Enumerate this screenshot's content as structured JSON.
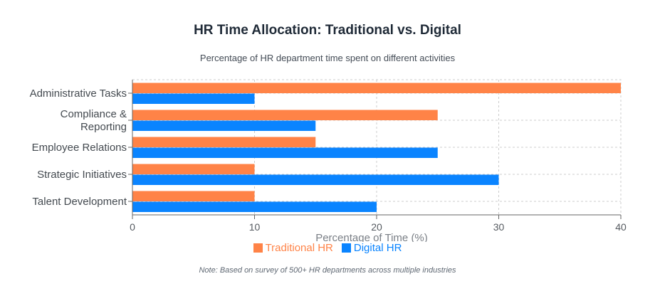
{
  "chart_data": {
    "type": "bar",
    "orientation": "horizontal",
    "title": "HR Time Allocation: Traditional vs. Digital",
    "subtitle": "Percentage of HR department time spent on different activities",
    "categories": [
      [
        "Administrative Tasks"
      ],
      [
        "Compliance &",
        "Reporting"
      ],
      [
        "Employee Relations"
      ],
      [
        "Strategic Initiatives"
      ],
      [
        "Talent Development"
      ]
    ],
    "series": [
      {
        "name": "Traditional HR",
        "color": "#ff8347",
        "values": [
          40,
          25,
          15,
          10,
          10
        ]
      },
      {
        "name": "Digital HR",
        "color": "#0a84ff",
        "values": [
          10,
          15,
          25,
          30,
          20
        ]
      }
    ],
    "xlabel": "Percentage of Time (%)",
    "ylabel": "",
    "xlim": [
      0,
      40
    ],
    "xticks": [
      "0",
      "10",
      "20",
      "30",
      "40"
    ],
    "grid": true,
    "legend_position": "bottom-center",
    "note": "Note: Based on survey of 500+ HR departments across multiple industries"
  }
}
